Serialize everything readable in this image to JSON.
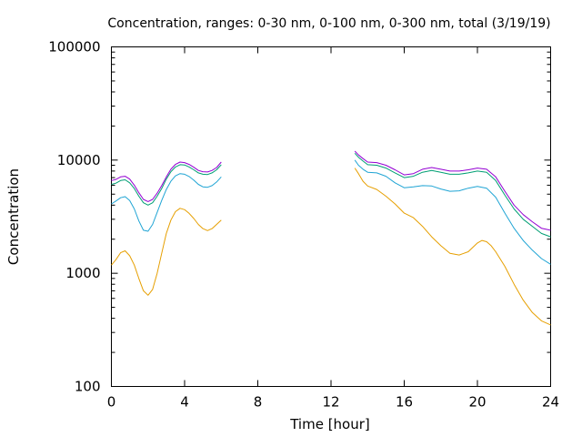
{
  "chart_data": {
    "type": "line",
    "title": "Concentration, ranges: 0-30 nm, 0-100 nm, 0-300 nm, total (3/19/19)",
    "xlabel": "Time [hour]",
    "ylabel": "Concentration",
    "xlim": [
      0,
      24
    ],
    "ylim": [
      100,
      100000
    ],
    "yscale": "log",
    "grid": false,
    "legend": "none",
    "x_ticks": [
      "0",
      "4",
      "8",
      "12",
      "16",
      "20",
      "24"
    ],
    "x_tick_values": [
      0,
      4,
      8,
      12,
      16,
      20,
      24
    ],
    "y_ticks": [
      "100",
      "1000",
      "10000",
      "100000"
    ],
    "y_tick_values": [
      100,
      1000,
      10000,
      100000
    ],
    "series": [
      {
        "color": "#e69f00",
        "segments": [
          {
            "x": [
              0,
              0.25,
              0.5,
              0.75,
              1.0,
              1.25,
              1.5,
              1.75,
              2.0,
              2.25,
              2.5,
              2.75,
              3.0,
              3.25,
              3.5,
              3.75,
              4.0,
              4.25,
              4.5,
              4.75,
              5.0,
              5.25,
              5.5,
              5.75,
              6.0
            ],
            "y": [
              1180,
              1320,
              1520,
              1580,
              1430,
              1180,
              900,
              700,
              640,
              720,
              1000,
              1500,
              2250,
              2950,
              3500,
              3750,
              3650,
              3380,
              3050,
              2700,
              2480,
              2380,
              2480,
              2700,
              2950
            ]
          },
          {
            "x": [
              13.3,
              13.5,
              13.75,
              14.0,
              14.5,
              15.0,
              15.5,
              16.0,
              16.5,
              17.0,
              17.5,
              18.0,
              18.5,
              19.0,
              19.5,
              20.0,
              20.25,
              20.5,
              20.75,
              21.0,
              21.5,
              22.0,
              22.5,
              23.0,
              23.5,
              24.0
            ],
            "y": [
              8500,
              7600,
              6500,
              5900,
              5500,
              4800,
              4100,
              3400,
              3100,
              2600,
              2100,
              1750,
              1500,
              1450,
              1550,
              1850,
              1950,
              1900,
              1750,
              1550,
              1150,
              800,
              580,
              450,
              380,
              350
            ]
          }
        ]
      },
      {
        "color": "#1fa4d4",
        "segments": [
          {
            "x": [
              0,
              0.25,
              0.5,
              0.75,
              1.0,
              1.25,
              1.5,
              1.75,
              2.0,
              2.25,
              2.5,
              2.75,
              3.0,
              3.25,
              3.5,
              3.75,
              4.0,
              4.25,
              4.5,
              4.75,
              5.0,
              5.25,
              5.5,
              5.75,
              6.0
            ],
            "y": [
              4100,
              4350,
              4650,
              4750,
              4400,
              3700,
              2900,
              2400,
              2350,
              2700,
              3450,
              4400,
              5500,
              6500,
              7250,
              7600,
              7500,
              7150,
              6650,
              6100,
              5800,
              5750,
              5950,
              6400,
              7100
            ]
          },
          {
            "x": [
              13.3,
              13.5,
              13.75,
              14.0,
              14.5,
              15.0,
              15.5,
              16.0,
              16.5,
              17.0,
              17.5,
              18.0,
              18.5,
              19.0,
              19.5,
              20.0,
              20.5,
              21.0,
              21.5,
              22.0,
              22.5,
              23.0,
              23.5,
              24.0
            ],
            "y": [
              10000,
              9000,
              8300,
              7800,
              7700,
              7200,
              6300,
              5700,
              5800,
              5950,
              5900,
              5550,
              5300,
              5350,
              5650,
              5850,
              5650,
              4700,
              3400,
              2500,
              1950,
              1600,
              1350,
              1200
            ]
          }
        ]
      },
      {
        "color": "#009e73",
        "segments": [
          {
            "x": [
              0,
              0.25,
              0.5,
              0.75,
              1.0,
              1.25,
              1.5,
              1.75,
              2.0,
              2.25,
              2.5,
              2.75,
              3.0,
              3.25,
              3.5,
              3.75,
              4.0,
              4.25,
              4.5,
              4.75,
              5.0,
              5.25,
              5.5,
              5.75,
              6.0
            ],
            "y": [
              6100,
              6250,
              6600,
              6700,
              6300,
              5600,
              4800,
              4200,
              4000,
              4200,
              4800,
              5600,
              6800,
              7900,
              8700,
              9100,
              9050,
              8700,
              8200,
              7700,
              7500,
              7450,
              7700,
              8200,
              9100
            ]
          },
          {
            "x": [
              13.3,
              13.5,
              13.75,
              14.0,
              14.5,
              15.0,
              15.5,
              16.0,
              16.5,
              17.0,
              17.5,
              18.0,
              18.5,
              19.0,
              19.5,
              20.0,
              20.5,
              21.0,
              21.5,
              22.0,
              22.5,
              23.0,
              23.5,
              24.0
            ],
            "y": [
              11500,
              10600,
              9800,
              9100,
              9000,
              8500,
              7700,
              7000,
              7200,
              7800,
              8100,
              7800,
              7500,
              7500,
              7700,
              8000,
              7800,
              6600,
              4900,
              3700,
              3000,
              2600,
              2250,
              2100
            ]
          }
        ]
      },
      {
        "color": "#9400d3",
        "segments": [
          {
            "x": [
              0,
              0.25,
              0.5,
              0.75,
              1.0,
              1.25,
              1.5,
              1.75,
              2.0,
              2.25,
              2.5,
              2.75,
              3.0,
              3.25,
              3.5,
              3.75,
              4.0,
              4.25,
              4.5,
              4.75,
              5.0,
              5.25,
              5.5,
              5.75,
              6.0
            ],
            "y": [
              6600,
              6750,
              7100,
              7200,
              6800,
              6000,
              5150,
              4500,
              4300,
              4500,
              5100,
              5950,
              7100,
              8300,
              9150,
              9600,
              9500,
              9150,
              8650,
              8100,
              7900,
              7850,
              8100,
              8600,
              9600
            ]
          },
          {
            "x": [
              13.3,
              13.5,
              13.75,
              14.0,
              14.5,
              15.0,
              15.5,
              16.0,
              16.5,
              17.0,
              17.5,
              18.0,
              18.5,
              19.0,
              19.5,
              20.0,
              20.5,
              21.0,
              21.5,
              22.0,
              22.5,
              23.0,
              23.5,
              24.0
            ],
            "y": [
              12000,
              11100,
              10300,
              9600,
              9500,
              9000,
              8200,
              7400,
              7600,
              8300,
              8600,
              8300,
              8000,
              8000,
              8200,
              8500,
              8300,
              7100,
              5300,
              4000,
              3300,
              2850,
              2500,
              2400
            ]
          }
        ]
      }
    ]
  }
}
